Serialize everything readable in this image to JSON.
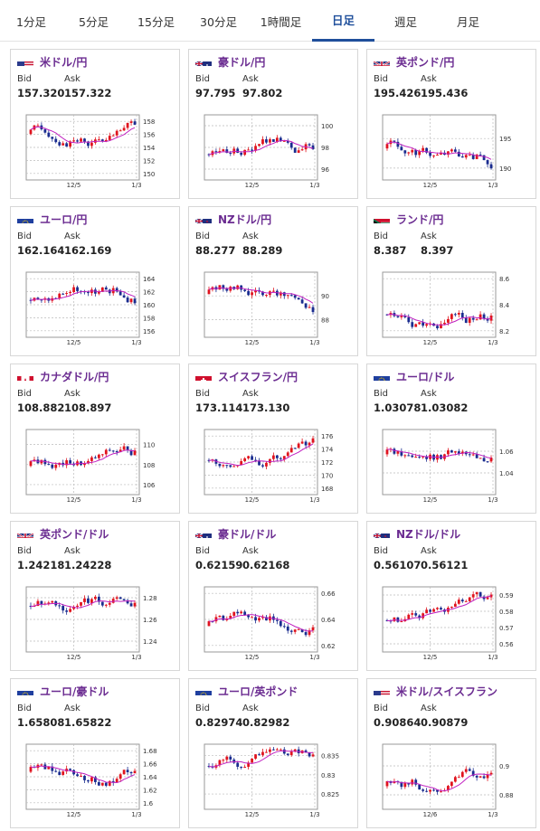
{
  "tabs": [
    {
      "label": "1分足",
      "active": false
    },
    {
      "label": "5分足",
      "active": false
    },
    {
      "label": "15分足",
      "active": false
    },
    {
      "label": "30分足",
      "active": false
    },
    {
      "label": "1時間足",
      "active": false
    },
    {
      "label": "日足",
      "active": true
    },
    {
      "label": "週足",
      "active": false
    },
    {
      "label": "月足",
      "active": false
    }
  ],
  "labels": {
    "bid": "Bid",
    "ask": "Ask"
  },
  "colors": {
    "tab_active": "#1f4f9b",
    "pair_name": "#6b2c91",
    "candle_up": "#e0141e",
    "candle_down": "#1a2c8f",
    "ma_line": "#c020c0"
  },
  "pairs": [
    {
      "name": "米ドル/円",
      "flag": "flag-us-icon",
      "bid": "157.320",
      "ask": "157.322",
      "chart_data": {
        "type": "candlestick",
        "x_ticks": [
          "12/5",
          "1/3"
        ],
        "y_ticks": [
          150,
          152,
          154,
          156,
          158
        ],
        "ylim": [
          149,
          159
        ]
      }
    },
    {
      "name": "豪ドル/円",
      "flag": "flag-au-icon",
      "bid": "97.795",
      "ask": "97.802",
      "chart_data": {
        "type": "candlestick",
        "x_ticks": [
          "12/5",
          "1/3"
        ],
        "y_ticks": [
          96,
          98,
          100
        ],
        "ylim": [
          95,
          101
        ]
      }
    },
    {
      "name": "英ポンド/円",
      "flag": "flag-gb-icon",
      "bid": "195.426",
      "ask": "195.436",
      "chart_data": {
        "type": "candlestick",
        "x_ticks": [
          "12/5",
          "1/3"
        ],
        "y_ticks": [
          190,
          195
        ],
        "ylim": [
          188,
          199
        ]
      }
    },
    {
      "name": "ユーロ/円",
      "flag": "flag-eu-icon",
      "bid": "162.164",
      "ask": "162.169",
      "chart_data": {
        "type": "candlestick",
        "x_ticks": [
          "12/5",
          "1/3"
        ],
        "y_ticks": [
          156,
          158,
          160,
          162,
          164
        ],
        "ylim": [
          155,
          165
        ]
      }
    },
    {
      "name": "NZドル/円",
      "flag": "flag-nz-icon",
      "bid": "88.277",
      "ask": "88.289",
      "chart_data": {
        "type": "candlestick",
        "x_ticks": [
          "12/5",
          "1/3"
        ],
        "y_ticks": [
          88,
          90
        ],
        "ylim": [
          86.5,
          92
        ]
      }
    },
    {
      "name": "ランド/円",
      "flag": "flag-za-icon",
      "bid": "8.387",
      "ask": "8.397",
      "chart_data": {
        "type": "candlestick",
        "x_ticks": [
          "12/5",
          "1/3"
        ],
        "y_ticks": [
          8.2,
          8.4,
          8.6
        ],
        "ylim": [
          8.15,
          8.65
        ]
      }
    },
    {
      "name": "カナダドル/円",
      "flag": "flag-ca-icon",
      "bid": "108.882",
      "ask": "108.897",
      "chart_data": {
        "type": "candlestick",
        "x_ticks": [
          "12/5",
          "1/3"
        ],
        "y_ticks": [
          106,
          108,
          110
        ],
        "ylim": [
          105,
          111.5
        ]
      }
    },
    {
      "name": "スイスフラン/円",
      "flag": "flag-ch-icon",
      "bid": "173.114",
      "ask": "173.130",
      "chart_data": {
        "type": "candlestick",
        "x_ticks": [
          "12/5",
          "1/3"
        ],
        "y_ticks": [
          168,
          170,
          172,
          174,
          176
        ],
        "ylim": [
          167,
          177
        ]
      }
    },
    {
      "name": "ユーロ/ドル",
      "flag": "flag-eu-icon",
      "bid": "1.03078",
      "ask": "1.03082",
      "chart_data": {
        "type": "candlestick",
        "x_ticks": [
          "12/5",
          "1/3"
        ],
        "y_ticks": [
          1.04,
          1.06
        ],
        "ylim": [
          1.02,
          1.08
        ]
      }
    },
    {
      "name": "英ポンド/ドル",
      "flag": "flag-gb-icon",
      "bid": "1.24218",
      "ask": "1.24228",
      "chart_data": {
        "type": "candlestick",
        "x_ticks": [
          "12/5",
          "1/3"
        ],
        "y_ticks": [
          1.24,
          1.26,
          1.28
        ],
        "ylim": [
          1.23,
          1.29
        ]
      }
    },
    {
      "name": "豪ドル/ドル",
      "flag": "flag-au-icon",
      "bid": "0.62159",
      "ask": "0.62168",
      "chart_data": {
        "type": "candlestick",
        "x_ticks": [
          "12/5",
          "1/3"
        ],
        "y_ticks": [
          0.62,
          0.64,
          0.66
        ],
        "ylim": [
          0.615,
          0.665
        ]
      }
    },
    {
      "name": "NZドル/ドル",
      "flag": "flag-nz-icon",
      "bid": "0.56107",
      "ask": "0.56121",
      "chart_data": {
        "type": "candlestick",
        "x_ticks": [
          "12/5",
          "1/3"
        ],
        "y_ticks": [
          0.56,
          0.57,
          0.58,
          0.59
        ],
        "ylim": [
          0.555,
          0.595
        ]
      }
    },
    {
      "name": "ユーロ/豪ドル",
      "flag": "flag-eu-icon",
      "bid": "1.65808",
      "ask": "1.65822",
      "chart_data": {
        "type": "candlestick",
        "x_ticks": [
          "12/5",
          "1/3"
        ],
        "y_ticks": [
          1.6,
          1.62,
          1.64,
          1.66,
          1.68
        ],
        "ylim": [
          1.59,
          1.69
        ]
      }
    },
    {
      "name": "ユーロ/英ポンド",
      "flag": "flag-eu-icon",
      "bid": "0.82974",
      "ask": "0.82982",
      "chart_data": {
        "type": "candlestick",
        "x_ticks": [
          "12/5",
          "1/3"
        ],
        "y_ticks": [
          0.825,
          0.83,
          0.835
        ],
        "ylim": [
          0.821,
          0.838
        ]
      }
    },
    {
      "name": "米ドル/スイスフラン",
      "flag": "flag-us-icon",
      "bid": "0.90864",
      "ask": "0.90879",
      "chart_data": {
        "type": "candlestick",
        "x_ticks": [
          "12/6",
          "1/3"
        ],
        "y_ticks": [
          0.88,
          0.9
        ],
        "ylim": [
          0.87,
          0.915
        ]
      }
    }
  ]
}
